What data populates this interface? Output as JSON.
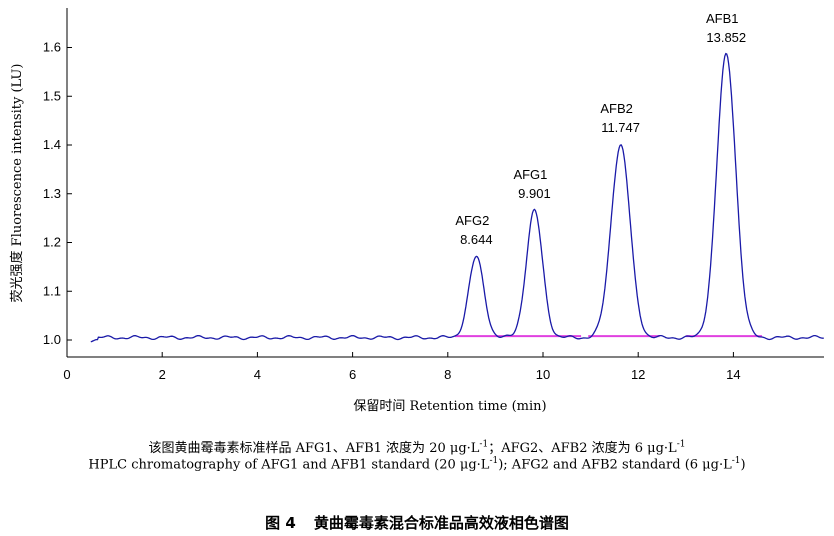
{
  "chart_data": {
    "type": "line",
    "xlabel": "保留时间 Retention time (min)",
    "ylabel": "荧光强度 Fluorescence intensity (LU)",
    "xlim": [
      0,
      15.9
    ],
    "ylim": [
      1.0,
      1.67
    ],
    "xticks": [
      0,
      2,
      4,
      6,
      8,
      10,
      12,
      14
    ],
    "yticks": [
      1.0,
      1.1,
      1.2,
      1.3,
      1.4,
      1.5,
      1.6
    ],
    "ytick_labels": [
      "1.0",
      "1.1",
      "1.2",
      "1.3",
      "1.4",
      "1.5",
      "1.6"
    ],
    "grid": false,
    "baseline": 1.005,
    "series": [
      {
        "color": "#1a1aa8",
        "peaks": [
          {
            "name": "AFG2",
            "retention_time": "8.644",
            "x": 8.6,
            "height": 1.17,
            "width": 0.16
          },
          {
            "name": "AFG1",
            "retention_time": "9.901",
            "x": 9.82,
            "height": 1.265,
            "width": 0.17
          },
          {
            "name": "AFB2",
            "retention_time": "11.747",
            "x": 11.63,
            "height": 1.4,
            "width": 0.2
          },
          {
            "name": "AFB1",
            "retention_time": "13.852",
            "x": 13.85,
            "height": 1.585,
            "width": 0.2
          }
        ]
      }
    ],
    "integration_baselines": [
      {
        "x1": 8.15,
        "x2": 10.8
      },
      {
        "x1": 10.95,
        "x2": 12.45
      },
      {
        "x1": 13.0,
        "x2": 14.6
      }
    ],
    "baseline_color": "#e040e0"
  },
  "captions": {
    "cn_pre": "该图黄曲霉毒素标准样品 AFG1、AFB1 浓度为 20 μg·L",
    "cn_mid": "；AFG2、AFB2 浓度为 6 μg·L",
    "en_pre": "HPLC chromatography of AFG1 and AFB1 standard (20 μg·L",
    "en_mid": "); AFG2 and AFB2 standard (6 μg·L",
    "en_post": ")",
    "sup": "-1"
  },
  "figure_title": {
    "number": "图 4",
    "text": "黄曲霉毒素混合标准品高效液相色谱图"
  }
}
